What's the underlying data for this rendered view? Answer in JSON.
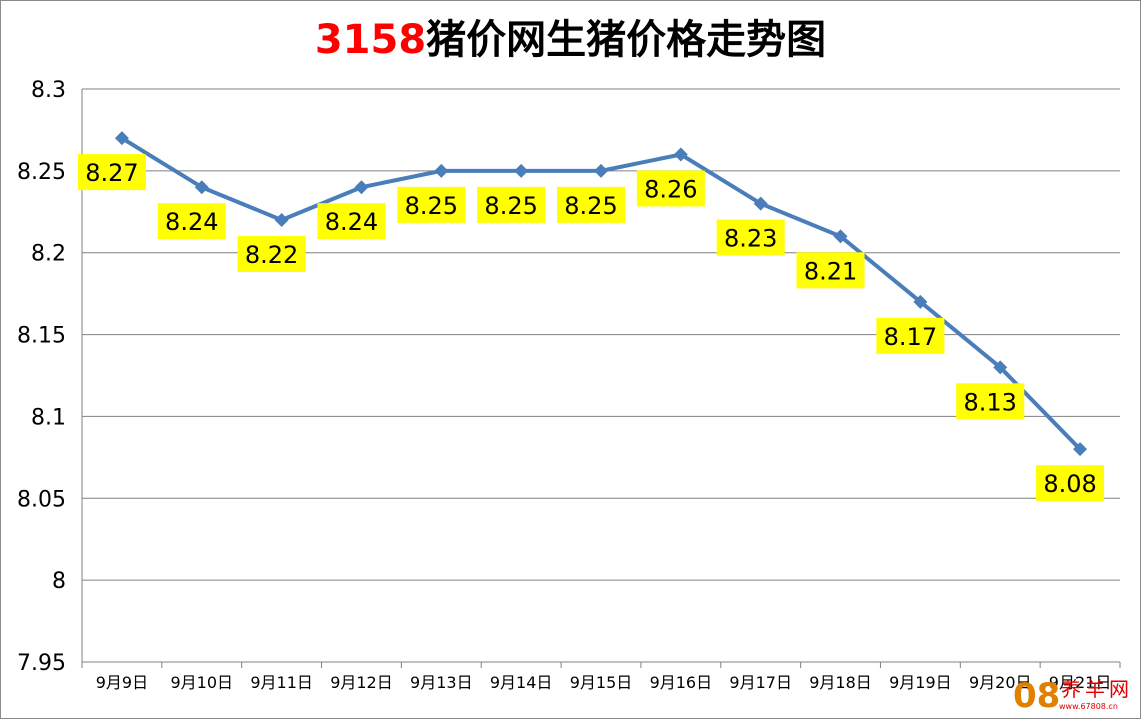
{
  "chart_data": {
    "type": "line",
    "title_prefix": "3158",
    "title_suffix": "猪价网生猪价格走势图",
    "xlabel": "",
    "ylabel": "",
    "categories": [
      "9月9日",
      "9月10日",
      "9月11日",
      "9月12日",
      "9月13日",
      "9月14日",
      "9月15日",
      "9月16日",
      "9月17日",
      "9月18日",
      "9月19日",
      "9月20日",
      "9月21日"
    ],
    "values": [
      8.27,
      8.24,
      8.22,
      8.24,
      8.25,
      8.25,
      8.25,
      8.26,
      8.23,
      8.21,
      8.17,
      8.13,
      8.08
    ],
    "data_labels": [
      "8.27",
      "8.24",
      "8.22",
      "8.24",
      "8.25",
      "8.25",
      "8.25",
      "8.26",
      "8.23",
      "8.21",
      "8.17",
      "8.13",
      "8.08"
    ],
    "ylim": [
      7.95,
      8.3
    ],
    "yticks": [
      7.95,
      8,
      8.05,
      8.1,
      8.15,
      8.2,
      8.25,
      8.3
    ],
    "ytick_labels": [
      "7.95",
      "8",
      "8.05",
      "8.1",
      "8.15",
      "8.2",
      "8.25",
      "8.3"
    ],
    "grid": true,
    "legend": "none",
    "colors": {
      "line": "#4a7ebb",
      "marker": "#4a7ebb",
      "label_bg": "#ffff00",
      "grid": "#808080",
      "title_prefix": "#ff0000",
      "title_suffix": "#000000"
    }
  },
  "watermark": {
    "number": "08",
    "text": "养羊网",
    "url": "www.67808.cn"
  }
}
